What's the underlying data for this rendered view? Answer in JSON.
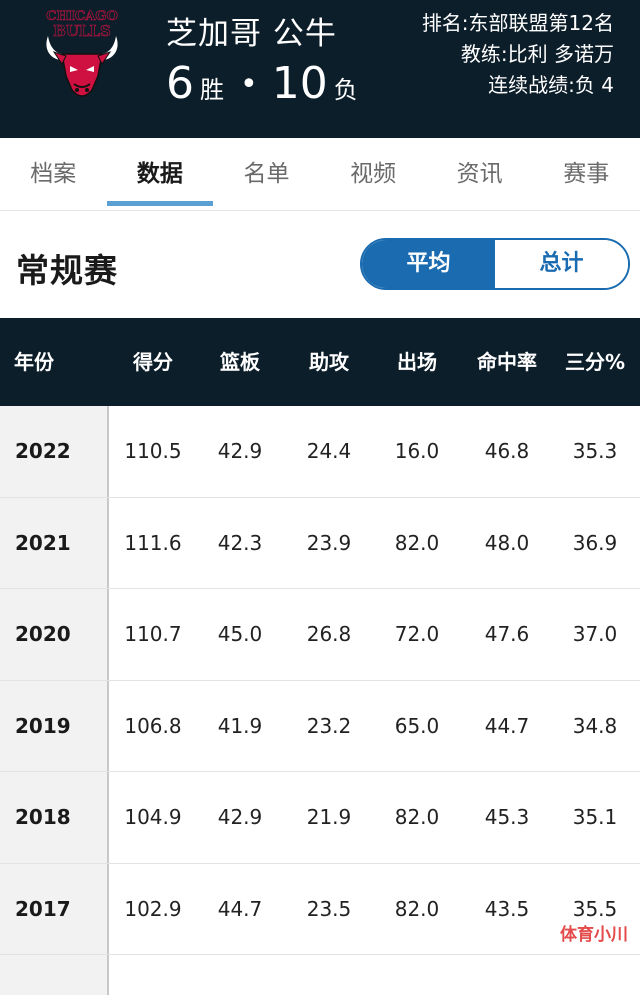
{
  "header": {
    "logo_text": "CHICAGO BULLS",
    "team_name": "芝加哥 公牛",
    "wins": "6",
    "wins_unit": "胜",
    "separator": "•",
    "losses": "10",
    "losses_unit": "负",
    "rank": "排名:东部联盟第12名",
    "coach": "教练:比利 多诺万",
    "streak": "连续战绩:负 4"
  },
  "tabs": [
    {
      "label": "档案",
      "active": false
    },
    {
      "label": "数据",
      "active": true
    },
    {
      "label": "名单",
      "active": false
    },
    {
      "label": "视频",
      "active": false
    },
    {
      "label": "资讯",
      "active": false
    },
    {
      "label": "赛事",
      "active": false
    }
  ],
  "section": {
    "title": "常规赛",
    "toggle_avg": "平均",
    "toggle_total": "总计"
  },
  "table": {
    "headers": [
      "年份",
      "得分",
      "篮板",
      "助攻",
      "出场",
      "命中率",
      "三分%"
    ],
    "rows": [
      [
        "2022",
        "110.5",
        "42.9",
        "24.4",
        "16.0",
        "46.8",
        "35.3"
      ],
      [
        "2021",
        "111.6",
        "42.3",
        "23.9",
        "82.0",
        "48.0",
        "36.9"
      ],
      [
        "2020",
        "110.7",
        "45.0",
        "26.8",
        "72.0",
        "47.6",
        "37.0"
      ],
      [
        "2019",
        "106.8",
        "41.9",
        "23.2",
        "65.0",
        "44.7",
        "34.8"
      ],
      [
        "2018",
        "104.9",
        "42.9",
        "21.9",
        "82.0",
        "45.3",
        "35.1"
      ],
      [
        "2017",
        "102.9",
        "44.7",
        "23.5",
        "82.0",
        "43.5",
        "35.5"
      ]
    ]
  },
  "watermark": "体育小川",
  "colors": {
    "header_bg": "#0c1e2a",
    "accent_blue": "#1b6bb0",
    "tab_underline": "#5aa0d2",
    "logo_red": "#ce1141"
  }
}
